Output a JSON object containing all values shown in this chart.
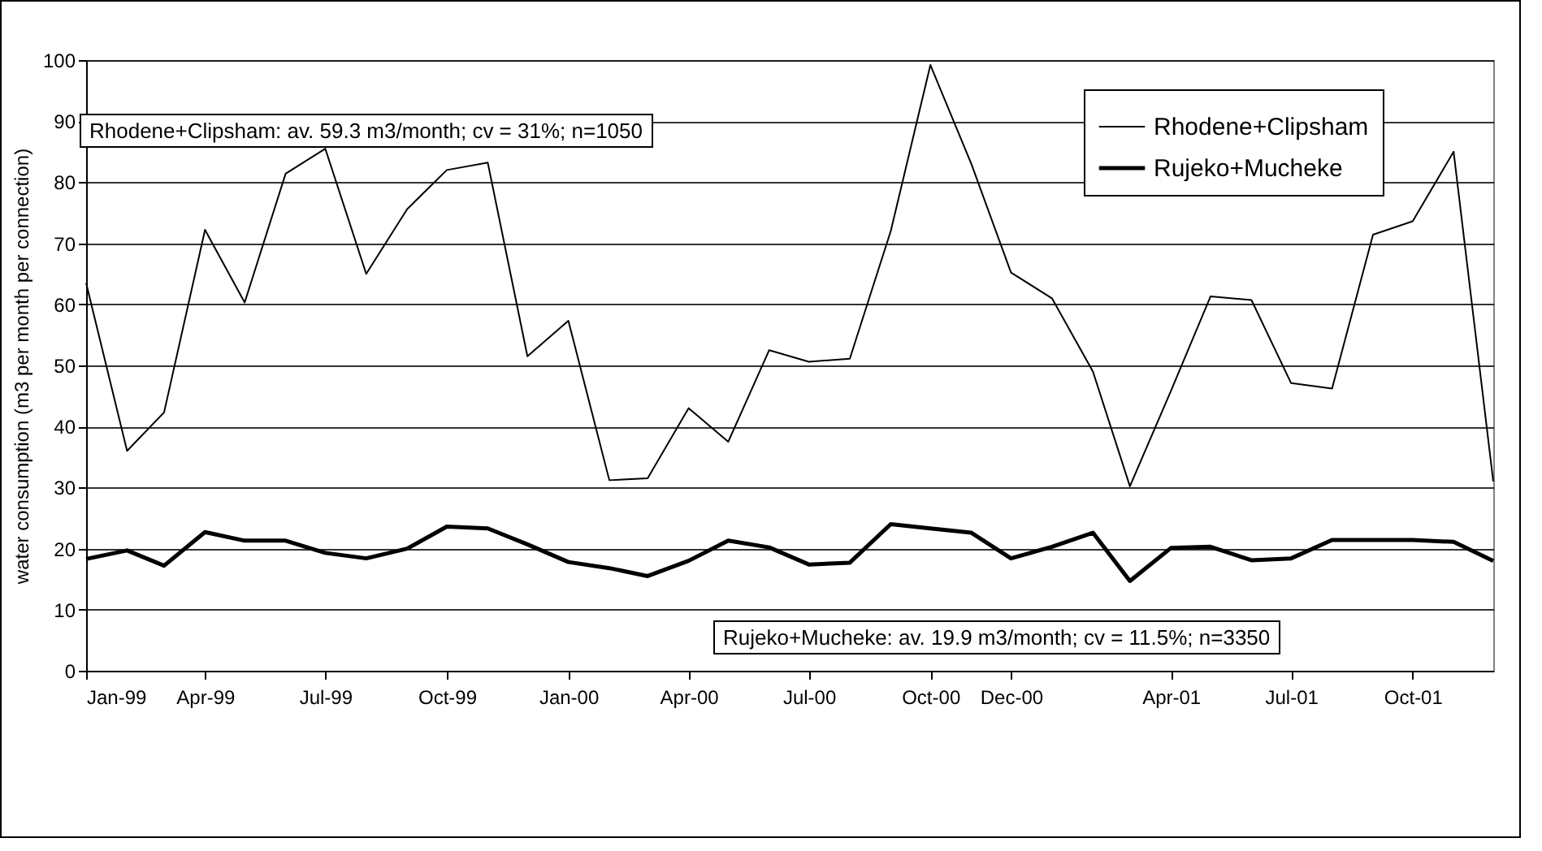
{
  "chart_data": {
    "type": "line",
    "ylabel": "water consumption (m3 per month per connection)",
    "annotations": [
      "Rhodene+Clipsham: av. 59.3 m3/month; cv = 31%; n=1050",
      "Rujeko+Mucheke: av. 19.9 m3/month; cv = 11.5%; n=3350"
    ],
    "x": [
      "1999-01",
      "1999-02",
      "1999-03",
      "1999-04",
      "1999-05",
      "1999-06",
      "1999-07",
      "1999-08",
      "1999-09",
      "1999-10",
      "1999-11",
      "1999-12",
      "2000-01",
      "2000-02",
      "2000-03",
      "2000-04",
      "2000-05",
      "2000-06",
      "2000-07",
      "2000-08",
      "2000-09",
      "2000-10",
      "2000-11",
      "2000-12",
      "2001-01",
      "2001-02",
      "2001-03",
      "2001-04",
      "2001-05",
      "2001-06",
      "2001-07",
      "2001-08",
      "2001-09",
      "2001-10",
      "2001-11",
      "2001-12"
    ],
    "series": [
      {
        "name": "Rhodene+Clipsham",
        "color": "#000000",
        "values": [
          63.5,
          36,
          42.3,
          72.2,
          60.3,
          81.4,
          85.5,
          65,
          75.6,
          82,
          83.2,
          51.5,
          57.3,
          31.2,
          31.5,
          43,
          37.5,
          52.5,
          50.6,
          51.1,
          72,
          99.2,
          83,
          65.2,
          61,
          49,
          30.2,
          45.8,
          61.3,
          60.7,
          47.1,
          46.2,
          71.4,
          73.6,
          85,
          31
        ]
      },
      {
        "name": "Rujeko+Mucheke",
        "color": "#000000",
        "values": [
          18.3,
          19.7,
          17.2,
          22.7,
          21.3,
          21.3,
          19.3,
          18.4,
          20,
          23.6,
          23.3,
          20.7,
          17.8,
          16.8,
          15.5,
          18,
          21.3,
          20.2,
          17.4,
          17.7,
          24,
          23.3,
          22.6,
          18.4,
          20.3,
          22.6,
          14.7,
          20.1,
          20.3,
          18.1,
          18.4,
          21.4,
          21.4,
          21.4,
          21.1,
          18
        ]
      }
    ],
    "xlim": [
      "1999-01",
      "2001-12"
    ],
    "xticks": [
      {
        "value": "1999-01",
        "label": "Jan-99"
      },
      {
        "value": "1999-04",
        "label": "Apr-99"
      },
      {
        "value": "1999-07",
        "label": "Jul-99"
      },
      {
        "value": "1999-10",
        "label": "Oct-99"
      },
      {
        "value": "2000-01",
        "label": "Jan-00"
      },
      {
        "value": "2000-04",
        "label": "Apr-00"
      },
      {
        "value": "2000-07",
        "label": "Jul-00"
      },
      {
        "value": "2000-10",
        "label": "Oct-00"
      },
      {
        "value": "2000-12",
        "label": "Dec-00"
      },
      {
        "value": "2001-04",
        "label": "Apr-01"
      },
      {
        "value": "2001-07",
        "label": "Jul-01"
      },
      {
        "value": "2001-10",
        "label": "Oct-01"
      }
    ],
    "ylim": [
      0,
      100
    ],
    "yticks": [
      0,
      10,
      20,
      30,
      40,
      50,
      60,
      70,
      80,
      90,
      100
    ],
    "grid": "y",
    "legend": "top right",
    "marker": "none",
    "line_style": "solid"
  }
}
